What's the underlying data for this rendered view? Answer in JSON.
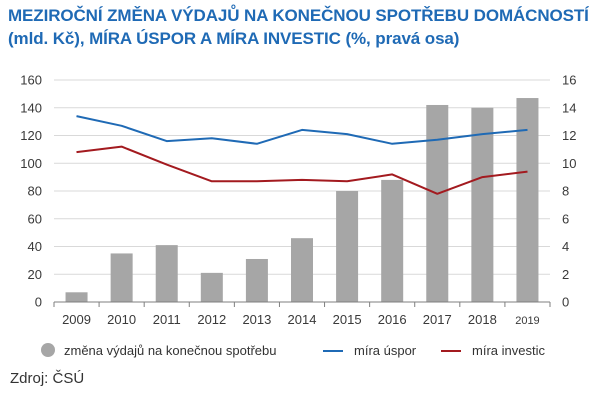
{
  "title": {
    "line1": "MEZIROČNÍ ZMĚNA VÝDAJŮ NA KONEČNOU SPOTŘEBU DOMÁCNOSTÍ",
    "line2": "(mld. Kč), MÍRA ÚSPOR A MÍRA INVESTIC (%, pravá osa)"
  },
  "source": "Zdroj: ČSÚ",
  "colors": {
    "bars": "#a6a6a6",
    "savings": "#1f6ab5",
    "investment": "#a31a1f",
    "title": "#1f6ab5"
  },
  "chart_data": {
    "type": "bar",
    "categories": [
      "2009",
      "2010",
      "2011",
      "2012",
      "2013",
      "2014",
      "2015",
      "2016",
      "2017",
      "2018",
      "2019"
    ],
    "ylim": [
      0,
      160
    ],
    "yticks": [
      0,
      20,
      40,
      60,
      80,
      100,
      120,
      140,
      160
    ],
    "y2lim": [
      0,
      16
    ],
    "y2ticks": [
      0,
      2,
      4,
      6,
      8,
      10,
      12,
      14,
      16
    ],
    "grid": true,
    "legend_position": "bottom",
    "series": [
      {
        "name": "změna výdajů na konečnou spotřebu",
        "type": "bar",
        "axis": "left",
        "values": [
          7,
          35,
          41,
          21,
          31,
          46,
          80,
          88,
          142,
          140,
          147
        ]
      },
      {
        "name": "míra úspor",
        "type": "line",
        "axis": "right",
        "values": [
          13.4,
          12.7,
          11.6,
          11.8,
          11.4,
          12.4,
          12.1,
          11.4,
          11.7,
          12.1,
          12.4
        ]
      },
      {
        "name": "míra investic",
        "type": "line",
        "axis": "right",
        "values": [
          10.8,
          11.2,
          9.9,
          8.7,
          8.7,
          8.8,
          8.7,
          9.2,
          7.8,
          9.0,
          9.4
        ]
      }
    ]
  }
}
